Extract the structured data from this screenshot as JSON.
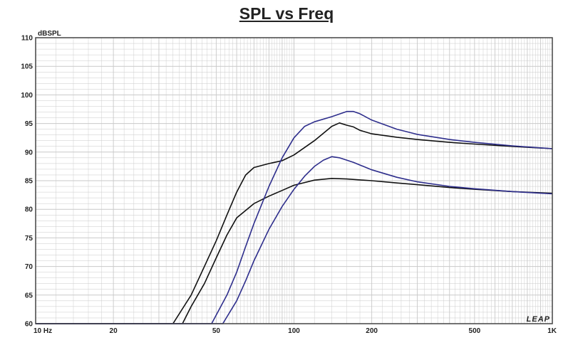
{
  "chart_data": {
    "type": "line",
    "title": "SPL vs Freq",
    "ylabel": "dBSPL",
    "xscale": "log",
    "xlim": [
      10,
      1000
    ],
    "ylim": [
      60,
      110
    ],
    "grid": true,
    "y_ticks": [
      60,
      65,
      70,
      75,
      80,
      85,
      90,
      95,
      100,
      105,
      110
    ],
    "x_ticks": [
      {
        "value": 10,
        "label": "10  Hz"
      },
      {
        "value": 20,
        "label": "20"
      },
      {
        "value": 50,
        "label": "50"
      },
      {
        "value": 100,
        "label": "100"
      },
      {
        "value": 200,
        "label": "200"
      },
      {
        "value": 500,
        "label": "500"
      },
      {
        "value": 1000,
        "label": "1K"
      }
    ],
    "logo_text": "LEAP",
    "colors": {
      "black_curve": "#111111",
      "blue_curve": "#2e2e8c",
      "grid": "#c9c9c9",
      "frame": "#444444"
    },
    "series": [
      {
        "color": "#111111",
        "x": [
          10,
          30,
          34,
          40,
          45,
          50,
          55,
          60,
          65,
          70,
          80,
          90,
          100,
          120,
          140,
          150,
          160,
          170,
          180,
          200,
          250,
          300,
          400,
          500,
          700,
          1000
        ],
        "y": [
          60,
          60,
          60,
          65,
          70,
          74.5,
          79,
          83,
          86,
          87.3,
          88,
          88.5,
          89.5,
          92,
          94.5,
          95.1,
          94.7,
          94.4,
          93.8,
          93.2,
          92.6,
          92.2,
          91.7,
          91.4,
          91,
          90.6
        ]
      },
      {
        "color": "#111111",
        "x": [
          10,
          30,
          37,
          40,
          45,
          50,
          55,
          60,
          70,
          80,
          90,
          100,
          120,
          140,
          160,
          200,
          250,
          300,
          400,
          500,
          700,
          1000
        ],
        "y": [
          60,
          60,
          60,
          63,
          67,
          71.5,
          75.5,
          78.5,
          81,
          82.3,
          83.3,
          84.2,
          85.1,
          85.4,
          85.3,
          85,
          84.6,
          84.3,
          83.8,
          83.5,
          83.1,
          82.8
        ]
      },
      {
        "color": "#2e2e8c",
        "x": [
          10,
          45,
          48,
          55,
          60,
          65,
          70,
          80,
          90,
          100,
          110,
          120,
          140,
          160,
          170,
          180,
          200,
          250,
          300,
          400,
          500,
          700,
          1000
        ],
        "y": [
          60,
          60,
          60,
          65,
          69,
          73.5,
          77.5,
          84,
          89,
          92.5,
          94.5,
          95.3,
          96.2,
          97.1,
          97.1,
          96.7,
          95.6,
          94,
          93.1,
          92.2,
          91.7,
          91.1,
          90.6
        ]
      },
      {
        "color": "#2e2e8c",
        "x": [
          10,
          50,
          53,
          60,
          65,
          70,
          80,
          90,
          100,
          110,
          120,
          130,
          140,
          150,
          170,
          200,
          250,
          300,
          400,
          500,
          700,
          1000
        ],
        "y": [
          60,
          60,
          60,
          64,
          67.5,
          71,
          76.5,
          80.5,
          83.5,
          85.8,
          87.5,
          88.6,
          89.2,
          89,
          88.2,
          86.9,
          85.6,
          84.8,
          84,
          83.6,
          83.1,
          82.7
        ]
      }
    ]
  }
}
